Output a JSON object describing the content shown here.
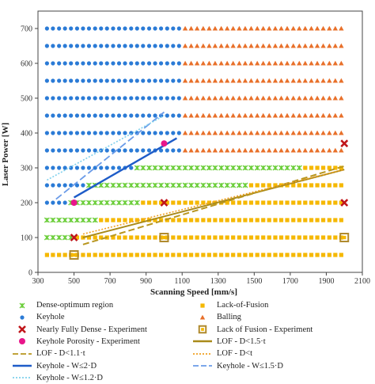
{
  "chart_data": {
    "type": "scatter",
    "xlabel": "Scanning Speed [mm/s]",
    "ylabel": "Laser Power [W]",
    "xlim": [
      300,
      2100
    ],
    "ylim": [
      0,
      750
    ],
    "xticks": [
      300,
      500,
      700,
      900,
      1100,
      1300,
      1500,
      1700,
      1900,
      2100
    ],
    "yticks": [
      0,
      100,
      200,
      300,
      400,
      500,
      600,
      700
    ],
    "grid": false,
    "legend_position": "bottom",
    "speed_grid": [
      350,
      383,
      417,
      450,
      483,
      517,
      550,
      583,
      617,
      650,
      683,
      717,
      750,
      783,
      817,
      850,
      883,
      917,
      950,
      983,
      1017,
      1050,
      1083,
      1117,
      1150,
      1183,
      1217,
      1250,
      1283,
      1317,
      1350,
      1383,
      1417,
      1450,
      1483,
      1517,
      1550,
      1583,
      1617,
      1650,
      1683,
      1717,
      1750,
      1783,
      1817,
      1850,
      1883,
      1917,
      1950,
      1983
    ],
    "regions": [
      {
        "name": "Dense-optimum region",
        "color": "#66cc33",
        "marker": "x",
        "rows": [
          {
            "power": 100,
            "x_from": 350,
            "x_to": 483
          },
          {
            "power": 150,
            "x_from": 350,
            "x_to": 617
          },
          {
            "power": 200,
            "x_from": 483,
            "x_to": 850
          },
          {
            "power": 250,
            "x_from": 583,
            "x_to": 1450
          },
          {
            "power": 300,
            "x_from": 850,
            "x_to": 1750
          }
        ]
      },
      {
        "name": "Keyhole",
        "color": "#2b7bd6",
        "marker": "circle",
        "rows": [
          {
            "power": 200,
            "x_from": 350,
            "x_to": 450
          },
          {
            "power": 250,
            "x_from": 350,
            "x_to": 550
          },
          {
            "power": 300,
            "x_from": 350,
            "x_to": 817
          },
          {
            "power": 350,
            "x_from": 350,
            "x_to": 1083
          },
          {
            "power": 400,
            "x_from": 350,
            "x_to": 1083
          },
          {
            "power": 450,
            "x_from": 350,
            "x_to": 1083
          },
          {
            "power": 500,
            "x_from": 350,
            "x_to": 1083
          },
          {
            "power": 550,
            "x_from": 350,
            "x_to": 1083
          },
          {
            "power": 600,
            "x_from": 350,
            "x_to": 1083
          },
          {
            "power": 650,
            "x_from": 350,
            "x_to": 1083
          },
          {
            "power": 700,
            "x_from": 350,
            "x_to": 1083
          }
        ]
      },
      {
        "name": "Lack-of-Fusion",
        "color": "#f5b800",
        "marker": "square",
        "rows": [
          {
            "power": 50,
            "x_from": 350,
            "x_to": 1983
          },
          {
            "power": 100,
            "x_from": 517,
            "x_to": 1983
          },
          {
            "power": 150,
            "x_from": 650,
            "x_to": 1983
          },
          {
            "power": 200,
            "x_from": 883,
            "x_to": 1983
          },
          {
            "power": 250,
            "x_from": 1483,
            "x_to": 1983
          },
          {
            "power": 300,
            "x_from": 1783,
            "x_to": 1983
          }
        ]
      },
      {
        "name": "Balling",
        "color": "#e8702a",
        "marker": "triangle",
        "rows": [
          {
            "power": 350,
            "x_from": 1117,
            "x_to": 1983
          },
          {
            "power": 400,
            "x_from": 1117,
            "x_to": 1983
          },
          {
            "power": 450,
            "x_from": 1117,
            "x_to": 1983
          },
          {
            "power": 500,
            "x_from": 1117,
            "x_to": 1983
          },
          {
            "power": 550,
            "x_from": 1117,
            "x_to": 1983
          },
          {
            "power": 600,
            "x_from": 1117,
            "x_to": 1983
          },
          {
            "power": 650,
            "x_from": 1117,
            "x_to": 1983
          },
          {
            "power": 700,
            "x_from": 1117,
            "x_to": 1983
          }
        ]
      }
    ],
    "experiments": [
      {
        "name": "Nearly Fully Dense - Experiment",
        "color": "#c0151a",
        "marker": "x-thick",
        "points": [
          [
            500,
            100
          ],
          [
            1000,
            200
          ],
          [
            2000,
            200
          ],
          [
            2000,
            370
          ]
        ]
      },
      {
        "name": "Keyhole Porosity - Experiment",
        "color": "#e8158a",
        "marker": "dot",
        "points": [
          [
            500,
            200
          ],
          [
            1000,
            370
          ]
        ]
      },
      {
        "name": "Lack of Fusion - Experiment",
        "color": "#b08a2e",
        "marker": "square-open",
        "points": [
          [
            500,
            50
          ],
          [
            1000,
            100
          ],
          [
            2000,
            100
          ]
        ]
      }
    ],
    "lines": [
      {
        "name": "LOF - D<1.5·t",
        "color": "#a98a1a",
        "dash": "solid",
        "width": 2,
        "points": [
          [
            550,
            100
          ],
          [
            2000,
            295
          ]
        ]
      },
      {
        "name": "LOF - D<1.1·t",
        "color": "#b8961f",
        "dash": "8,4",
        "width": 2,
        "points": [
          [
            550,
            80
          ],
          [
            2000,
            305
          ]
        ]
      },
      {
        "name": "LOF - D<t",
        "color": "#f0a020",
        "dash": "2,2",
        "width": 1.6,
        "points": [
          [
            550,
            110
          ],
          [
            2000,
            295
          ]
        ]
      },
      {
        "name": "Keyhole - W≤2·D",
        "color": "#1e5cc8",
        "dash": "solid",
        "width": 2.4,
        "points": [
          [
            500,
            215
          ],
          [
            1070,
            385
          ]
        ]
      },
      {
        "name": "Keyhole - W≤1.5·D",
        "color": "#6a9be8",
        "dash": "9,4",
        "width": 1.8,
        "points": [
          [
            400,
            210
          ],
          [
            1000,
            460
          ]
        ]
      },
      {
        "name": "Keyhole - W≤1.2·D",
        "color": "#7fd0ec",
        "dash": "2,2",
        "width": 1.6,
        "points": [
          [
            350,
            265
          ],
          [
            1000,
            450
          ]
        ]
      }
    ],
    "legend": [
      {
        "label": "Dense-optimum region",
        "symbol": "x",
        "color": "#66cc33"
      },
      {
        "label": "Lack-of-Fusion",
        "symbol": "square",
        "color": "#f5b800"
      },
      {
        "label": "Keyhole",
        "symbol": "circle",
        "color": "#2b7bd6"
      },
      {
        "label": "Balling",
        "symbol": "triangle",
        "color": "#e8702a"
      },
      {
        "label": "Nearly Fully Dense - Experiment",
        "symbol": "x-thick",
        "color": "#c0151a"
      },
      {
        "label": "Lack of Fusion - Experiment",
        "symbol": "square-open",
        "color": "#b08a2e"
      },
      {
        "label": "Keyhole Porosity - Experiment",
        "symbol": "dot",
        "color": "#e8158a"
      },
      {
        "label": "LOF - D<1.5·t",
        "symbol": "line-solid",
        "color": "#a98a1a"
      },
      {
        "label": "LOF - D<1.1·t",
        "symbol": "line-dash",
        "color": "#b8961f"
      },
      {
        "label": "LOF - D<t",
        "symbol": "line-dot",
        "color": "#f0a020"
      },
      {
        "label": "Keyhole - W≤2·D",
        "symbol": "line-solid",
        "color": "#1e5cc8"
      },
      {
        "label": "Keyhole - W≤1.5·D",
        "symbol": "line-dash",
        "color": "#6a9be8"
      },
      {
        "label": "Keyhole - W≤1.2·D",
        "symbol": "line-dot",
        "color": "#7fd0ec"
      }
    ]
  }
}
